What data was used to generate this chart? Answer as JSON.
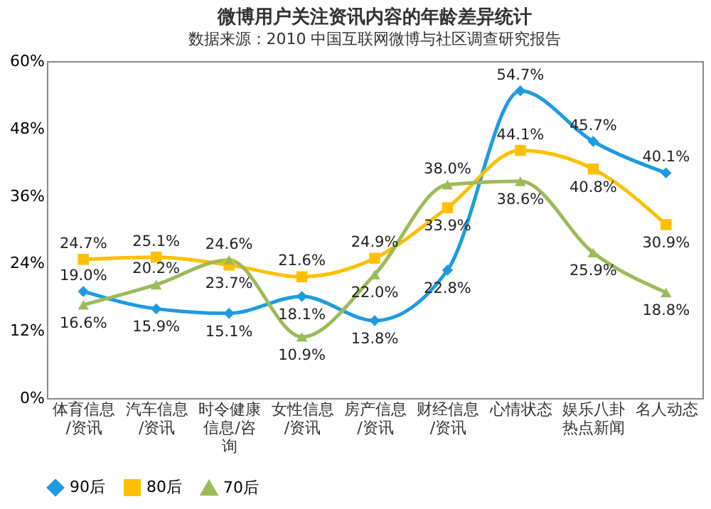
{
  "chart_data": {
    "type": "line",
    "title": "微博用户关注资讯内容的年龄差异统计",
    "categories": [
      "体育信息/资讯",
      "汽车信息/资讯",
      "时令健康信息/咨询",
      "女性信息/资讯",
      "房产信息/资讯",
      "财经信息/资讯",
      "心情状态",
      "娱乐八卦热点新闻",
      "名人动态"
    ],
    "series": [
      {
        "name": "90后",
        "color": "#1e9be0",
        "marker": "diamond",
        "values": [
          19.0,
          15.9,
          15.1,
          18.1,
          13.8,
          22.8,
          54.7,
          45.7,
          40.1
        ],
        "value_labels": [
          "19.0%",
          "15.9%",
          "15.1%",
          "18.1%",
          "13.8%",
          "22.8%",
          "54.7%",
          "45.7%",
          "40.1%"
        ]
      },
      {
        "name": "80后",
        "color": "#ffc000",
        "marker": "square",
        "values": [
          24.7,
          25.1,
          23.7,
          21.6,
          24.9,
          33.9,
          44.1,
          40.8,
          30.9
        ],
        "value_labels": [
          "24.7%",
          "25.1%",
          "23.7%",
          "21.6%",
          "24.9%",
          "33.9%",
          "44.1%",
          "40.8%",
          "30.9%"
        ]
      },
      {
        "name": "70后",
        "color": "#9bbb59",
        "marker": "triangle",
        "values": [
          16.6,
          20.2,
          24.6,
          10.9,
          22.0,
          38.0,
          38.6,
          25.9,
          18.8
        ],
        "value_labels": [
          "16.6%",
          "20.2%",
          "24.6%",
          "10.9%",
          "22.0%",
          "38.0%",
          "38.6%",
          "25.9%",
          "18.8%"
        ]
      }
    ],
    "ylim": [
      0,
      60
    ],
    "yticks": [
      {
        "value": 0,
        "label": "0%"
      },
      {
        "value": 12,
        "label": "12%"
      },
      {
        "value": 24,
        "label": "24%"
      },
      {
        "value": 36,
        "label": "36%"
      },
      {
        "value": 48,
        "label": "48%"
      },
      {
        "value": 60,
        "label": "60%"
      }
    ],
    "grid": false,
    "legend": "bottom",
    "line_style": "solid",
    "annotations": [
      "数据来源：2010 中国互联网微博与社区调查研究报告"
    ]
  }
}
